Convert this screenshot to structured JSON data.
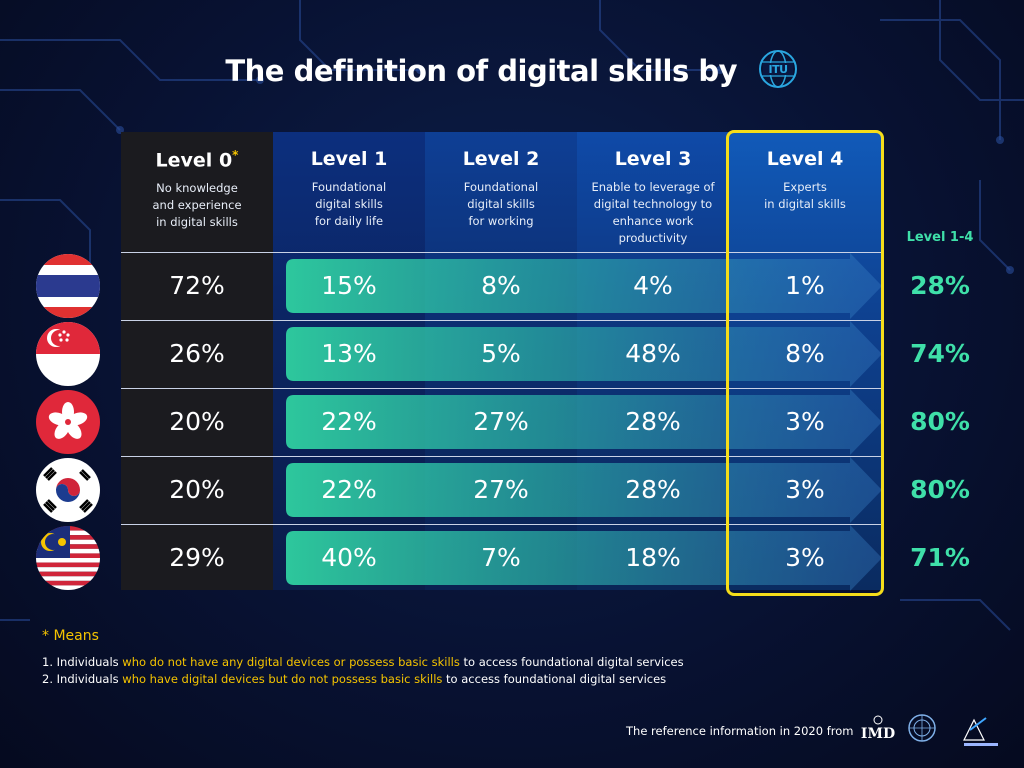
{
  "title": "The definition of digital skills by",
  "logo_itu_text": "ITU",
  "chart_data": {
    "type": "table",
    "columns": [
      {
        "level": "Level 0",
        "marker": "*",
        "desc": [
          "No knowledge",
          "and experience",
          "in digital skills"
        ]
      },
      {
        "level": "Level 1",
        "marker": "",
        "desc": [
          "Foundational",
          "digital skills",
          "for daily life"
        ]
      },
      {
        "level": "Level 2",
        "marker": "",
        "desc": [
          "Foundational",
          "digital skills",
          "for working"
        ]
      },
      {
        "level": "Level 3",
        "marker": "",
        "desc": [
          "Enable to leverage of",
          "digital technology to",
          "enhance work productivity"
        ]
      },
      {
        "level": "Level 4",
        "marker": "",
        "desc": [
          "Experts",
          "in digital skills"
        ]
      }
    ],
    "total_header": "Level 1-4",
    "rows": [
      {
        "flag": "thailand-flag",
        "values": [
          "72%",
          "15%",
          "8%",
          "4%",
          "1%"
        ],
        "total": "28%"
      },
      {
        "flag": "singapore-flag",
        "values": [
          "26%",
          "13%",
          "5%",
          "48%",
          "8%"
        ],
        "total": "74%"
      },
      {
        "flag": "hong-kong-flag",
        "values": [
          "20%",
          "22%",
          "27%",
          "28%",
          "3%"
        ],
        "total": "80%"
      },
      {
        "flag": "south-korea-flag",
        "values": [
          "20%",
          "22%",
          "27%",
          "28%",
          "3%"
        ],
        "total": "80%"
      },
      {
        "flag": "malaysia-flag",
        "values": [
          "29%",
          "40%",
          "7%",
          "18%",
          "3%"
        ],
        "total": "71%"
      }
    ],
    "highlight_column": "Level 4"
  },
  "notes": {
    "heading": "* Means",
    "items": [
      {
        "num": "1.",
        "pre": "Individuals",
        "hl": "who do not have any digital devices or possess basic skills",
        "post": "to access foundational digital services"
      },
      {
        "num": "2.",
        "pre": "Individuals",
        "hl": "who have digital devices but do not possess basic skills",
        "post": "to access foundational digital services"
      }
    ]
  },
  "footer": {
    "reference": "The reference information in 2020 from",
    "logo_imd_text": "IMD"
  },
  "colors": {
    "accent_green": "#3fe0a9",
    "highlight_yellow": "#f5dd1a",
    "note_yellow": "#f5c400"
  }
}
